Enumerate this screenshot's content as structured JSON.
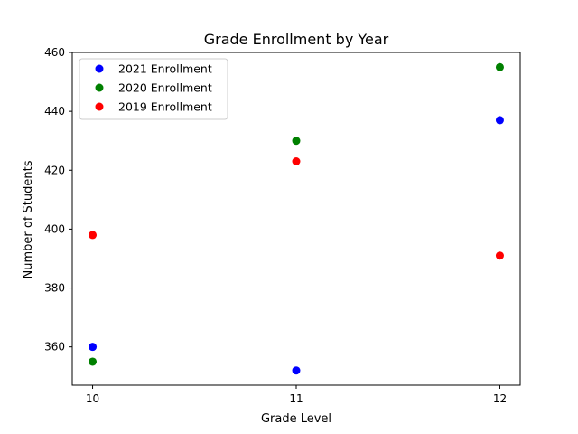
{
  "chart_data": {
    "type": "scatter",
    "title": "Grade Enrollment by Year",
    "xlabel": "Grade Level",
    "ylabel": "Number of Students",
    "x": [
      10,
      11,
      12
    ],
    "x_ticks": [
      "10",
      "11",
      "12"
    ],
    "xlim": [
      9.9,
      12.1
    ],
    "ylim": [
      347,
      460
    ],
    "y_ticks": [
      360,
      380,
      400,
      420,
      440,
      460
    ],
    "grid": false,
    "legend_position": "top-left",
    "series": [
      {
        "name": "2021 Enrollment",
        "color": "#0000ff",
        "values": [
          360,
          352,
          437
        ]
      },
      {
        "name": "2020 Enrollment",
        "color": "#008000",
        "values": [
          355,
          430,
          455
        ]
      },
      {
        "name": "2019 Enrollment",
        "color": "#ff0000",
        "values": [
          398,
          423,
          391
        ]
      }
    ]
  }
}
